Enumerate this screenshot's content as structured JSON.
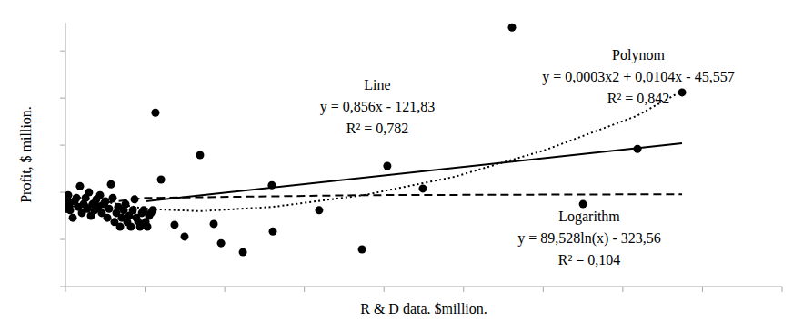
{
  "chart_data": {
    "type": "scatter",
    "x_label": "R & D data, $million.",
    "y_label": "Profit, $ million.",
    "xlim": [
      0,
      4500
    ],
    "xticks": [
      0,
      500,
      1000,
      1500,
      2000,
      2500,
      3000,
      3500,
      4000,
      4500
    ],
    "ylim": [
      0,
      560
    ],
    "yticks": [
      0,
      100,
      200,
      300,
      400,
      500
    ],
    "tick_labels": false,
    "grid": false,
    "series": [
      {
        "type": "scatter",
        "marker": "circle",
        "color": "#000000",
        "x": [
          6,
          11,
          17,
          23,
          29,
          46,
          57,
          69,
          80,
          91,
          103,
          114,
          126,
          137,
          148,
          160,
          171,
          183,
          194,
          206,
          217,
          228,
          240,
          251,
          263,
          274,
          286,
          297,
          308,
          320,
          331,
          343,
          354,
          366,
          377,
          388,
          400,
          411,
          423,
          434,
          445,
          457,
          468,
          480,
          491,
          503,
          514,
          525,
          537,
          548,
          565,
          600,
          685,
          748,
          845,
          931,
          977,
          1114,
          1296,
          1302,
          1593,
          1862,
          2021,
          2244,
          2804,
          3250,
          3592,
          3872
        ],
        "values": [
          165,
          185,
          194,
          175,
          162,
          146,
          181,
          188,
          169,
          213,
          156,
          175,
          188,
          165,
          200,
          150,
          175,
          162,
          185,
          169,
          194,
          156,
          175,
          181,
          146,
          165,
          217,
          188,
          137,
          156,
          169,
          127,
          146,
          162,
          175,
          137,
          150,
          127,
          162,
          185,
          146,
          137,
          127,
          156,
          162,
          137,
          127,
          150,
          156,
          162,
          369,
          227,
          131,
          106,
          279,
          133,
          92,
          73,
          215,
          117,
          162,
          79,
          256,
          208,
          550,
          175,
          292,
          412
        ]
      },
      {
        "name": "Line",
        "type": "line",
        "line_style": "solid",
        "color": "#000000",
        "equation": "y = 0,856x - 121,83",
        "r_squared": "R² = 0,782",
        "x": [
          503,
          3872
        ],
        "values": [
          181,
          304
        ]
      },
      {
        "name": "Polynom",
        "type": "line",
        "line_style": "dotted",
        "color": "#000000",
        "equation": "y = 0,0003x2 + 0,0104x - 45,557",
        "r_squared": "R² = 0,842",
        "x": [
          0,
          503,
          845,
          1302,
          1873,
          2444,
          3015,
          3586,
          3872
        ],
        "values": [
          194,
          165,
          160,
          169,
          194,
          233,
          290,
          362,
          415
        ]
      },
      {
        "name": "Logarithm",
        "type": "line",
        "line_style": "dashed",
        "color": "#000000",
        "equation": "y = 89,528ln(x) - 323,56",
        "r_squared": "R² = 0,104",
        "x": [
          17,
          503,
          1873,
          3872
        ],
        "values": [
          169,
          188,
          194,
          196
        ]
      }
    ]
  }
}
